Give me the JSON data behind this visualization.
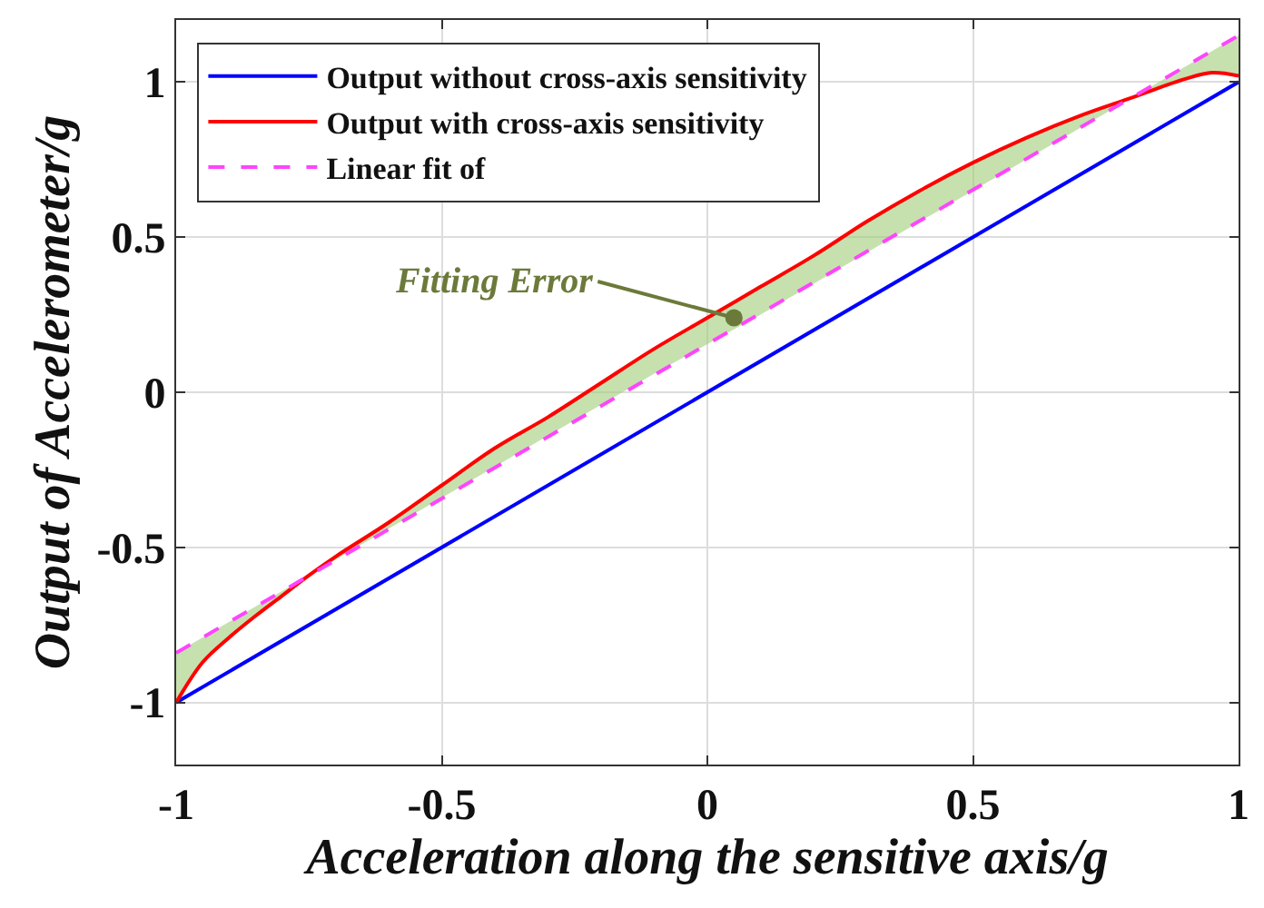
{
  "chart_data": {
    "type": "line",
    "xlabel": "Acceleration along the sensitive axis/g",
    "ylabel": "Output of Accelerometer/g",
    "xlim": [
      -1,
      1
    ],
    "ylim": [
      -1.2,
      1.2
    ],
    "xticks": [
      -1,
      -0.5,
      0,
      0.5,
      1
    ],
    "yticks": [
      -1,
      -0.5,
      0,
      0.5,
      1
    ],
    "grid": true,
    "legend": "top left",
    "marker": "none",
    "annotations": [
      {
        "text": "Fitting Error",
        "x": 0.05,
        "y": 0.24
      }
    ],
    "series": [
      {
        "name": "Output without cross-axis sensitivity",
        "color": "#0000ff",
        "x": [
          -1,
          1
        ],
        "values": [
          -1,
          1
        ]
      },
      {
        "name": "Output with cross-axis sensitivity",
        "color": "#ff0000",
        "x": [
          -1,
          -0.95,
          -0.9,
          -0.85,
          -0.8,
          -0.75,
          -0.7,
          -0.6,
          -0.5,
          -0.4,
          -0.3,
          -0.2,
          -0.1,
          0,
          0.1,
          0.2,
          0.3,
          0.4,
          0.5,
          0.6,
          0.7,
          0.8,
          0.9,
          0.95,
          1
        ],
        "values": [
          -1,
          -0.87,
          -0.79,
          -0.72,
          -0.655,
          -0.59,
          -0.53,
          -0.42,
          -0.3,
          -0.18,
          -0.08,
          0.03,
          0.14,
          0.24,
          0.34,
          0.44,
          0.55,
          0.65,
          0.74,
          0.82,
          0.89,
          0.95,
          1.01,
          1.03,
          1.02
        ],
        "upper": [
          -1,
          -0.87,
          -0.79,
          -0.72,
          -0.655,
          -0.59,
          -0.53,
          -0.42,
          -0.3,
          -0.18,
          -0.08,
          0.03,
          0.14,
          0.24,
          0.34,
          0.44,
          0.55,
          0.65,
          0.74,
          0.82,
          0.89,
          0.95,
          1.01,
          1.03,
          1.02
        ],
        "lower": [
          -0.84,
          -0.79,
          -0.74,
          -0.69,
          -0.64,
          -0.59,
          -0.54,
          -0.44,
          -0.34,
          -0.24,
          -0.14,
          -0.04,
          0.06,
          0.155,
          0.25,
          0.35,
          0.45,
          0.55,
          0.65,
          0.75,
          0.85,
          0.95,
          1.05,
          1.1,
          1.15
        ]
      },
      {
        "name": "Linear fit of",
        "color": "#ff44ff",
        "line_style": "dashed",
        "x": [
          -1,
          1
        ],
        "values": [
          -0.84,
          1.15
        ]
      }
    ]
  }
}
